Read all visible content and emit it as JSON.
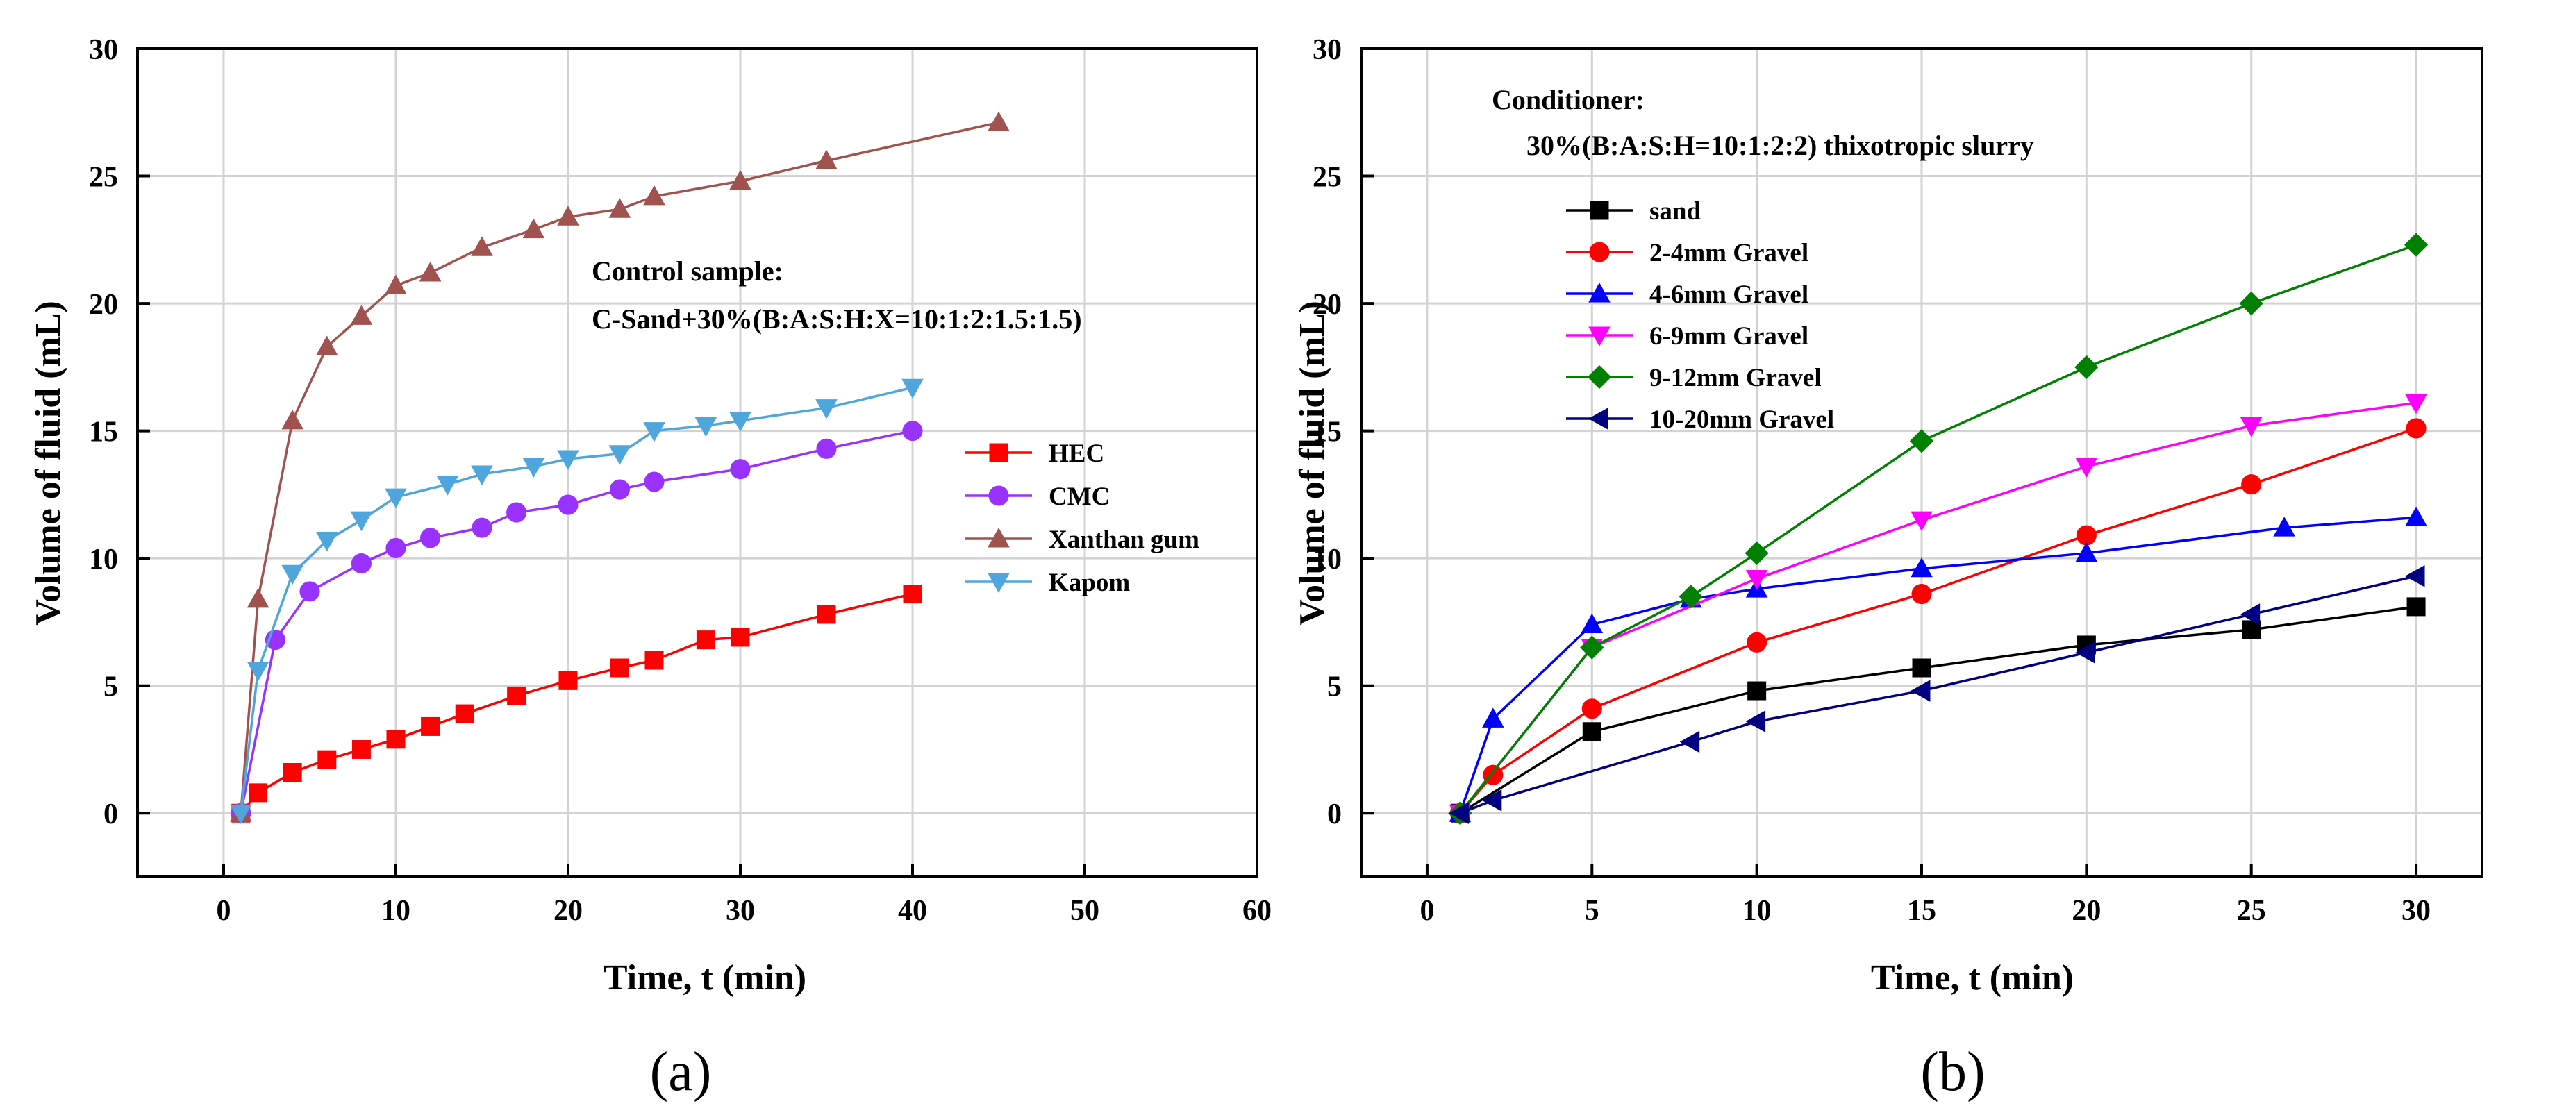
{
  "chart_data": [
    {
      "id": "a",
      "type": "line",
      "panel_label": "(a)",
      "xlabel": "Time, t (min)",
      "ylabel": "Volume of fluid (mL)",
      "xlim": [
        -5,
        60
      ],
      "ylim": [
        -2.5,
        30
      ],
      "xticks": [
        0,
        10,
        20,
        30,
        40,
        50,
        60
      ],
      "yticks": [
        0,
        5,
        10,
        15,
        20,
        25,
        30
      ],
      "grid": true,
      "legend_position": "right-middle",
      "annotation": [
        "Control sample:",
        "C-Sand+30%(B:A:S:H:X=10:1:2:1.5:1.5)"
      ],
      "series": [
        {
          "name": "HEC",
          "color": "#ff0000",
          "marker": "square",
          "x": [
            1,
            2,
            4,
            6,
            8,
            10,
            12,
            14,
            17,
            20,
            23,
            25,
            28,
            30,
            35,
            40
          ],
          "y": [
            0,
            0.8,
            1.6,
            2.1,
            2.5,
            2.9,
            3.4,
            3.9,
            4.6,
            5.2,
            5.7,
            6.0,
            6.8,
            6.9,
            7.8,
            8.6
          ]
        },
        {
          "name": "CMC",
          "color": "#9932ff",
          "marker": "circle",
          "x": [
            1,
            3,
            5,
            8,
            10,
            12,
            15,
            17,
            20,
            23,
            25,
            30,
            35,
            40
          ],
          "y": [
            0,
            6.8,
            8.7,
            9.8,
            10.4,
            10.8,
            11.2,
            11.8,
            12.1,
            12.7,
            13.0,
            13.5,
            14.3,
            15.0
          ]
        },
        {
          "name": "Xanthan gum",
          "color": "#a0524e",
          "marker": "triangle-up",
          "x": [
            1,
            2,
            4,
            6,
            8,
            10,
            12,
            15,
            18,
            20,
            23,
            25,
            30,
            35,
            45
          ],
          "y": [
            0,
            8.4,
            15.4,
            18.3,
            19.5,
            20.7,
            21.2,
            22.2,
            22.9,
            23.4,
            23.7,
            24.2,
            24.8,
            25.6,
            27.1
          ]
        },
        {
          "name": "Kapom",
          "color": "#4ea6dc",
          "marker": "triangle-down",
          "x": [
            1,
            2,
            4,
            6,
            8,
            10,
            13,
            15,
            18,
            20,
            23,
            25,
            28,
            30,
            35,
            40
          ],
          "y": [
            0,
            5.6,
            9.4,
            10.7,
            11.5,
            12.4,
            12.9,
            13.3,
            13.6,
            13.9,
            14.1,
            15.0,
            15.2,
            15.4,
            15.9,
            16.7
          ]
        }
      ]
    },
    {
      "id": "b",
      "type": "line",
      "panel_label": "(b)",
      "xlabel": "Time, t (min)",
      "ylabel": "Volume of fluid (mL)",
      "xlim": [
        -2,
        32
      ],
      "ylim": [
        -2.5,
        30
      ],
      "xticks": [
        0,
        5,
        10,
        15,
        20,
        25,
        30
      ],
      "yticks": [
        0,
        5,
        10,
        15,
        20,
        25,
        30
      ],
      "grid": true,
      "legend_position": "top-left",
      "annotation": [
        "Conditioner:",
        "30%(B:A:S:H=10:1:2:2) thixotropic slurry"
      ],
      "series": [
        {
          "name": "sand",
          "color": "#000000",
          "marker": "square",
          "x": [
            1,
            5,
            10,
            15,
            20,
            25,
            30
          ],
          "y": [
            0,
            3.2,
            4.8,
            5.7,
            6.6,
            7.2,
            8.1
          ]
        },
        {
          "name": "2-4mm Gravel",
          "color": "#ff0000",
          "marker": "circle",
          "x": [
            1,
            2,
            5,
            10,
            15,
            20,
            25,
            30
          ],
          "y": [
            0,
            1.5,
            4.1,
            6.7,
            8.6,
            10.9,
            12.9,
            15.1
          ]
        },
        {
          "name": "4-6mm Gravel",
          "color": "#0000ff",
          "marker": "triangle-up",
          "x": [
            1,
            2,
            5,
            8,
            10,
            15,
            20,
            26,
            30
          ],
          "y": [
            0,
            3.7,
            7.4,
            8.4,
            8.8,
            9.6,
            10.2,
            11.2,
            11.6
          ]
        },
        {
          "name": "6-9mm Gravel",
          "color": "#ff00ff",
          "marker": "triangle-down",
          "x": [
            1,
            5,
            10,
            15,
            20,
            25,
            30
          ],
          "y": [
            0,
            6.5,
            9.2,
            11.5,
            13.6,
            15.2,
            16.1
          ]
        },
        {
          "name": "9-12mm Gravel",
          "color": "#008000",
          "marker": "diamond",
          "x": [
            1,
            5,
            8,
            10,
            15,
            20,
            25,
            30
          ],
          "y": [
            0,
            6.5,
            8.5,
            10.2,
            14.6,
            17.5,
            20.0,
            22.3
          ]
        },
        {
          "name": "10-20mm Gravel",
          "color": "#000080",
          "marker": "triangle-left",
          "x": [
            1,
            2,
            8,
            10,
            15,
            20,
            25,
            30
          ],
          "y": [
            0,
            0.5,
            2.8,
            3.6,
            4.8,
            6.3,
            7.8,
            9.3
          ]
        }
      ]
    }
  ]
}
